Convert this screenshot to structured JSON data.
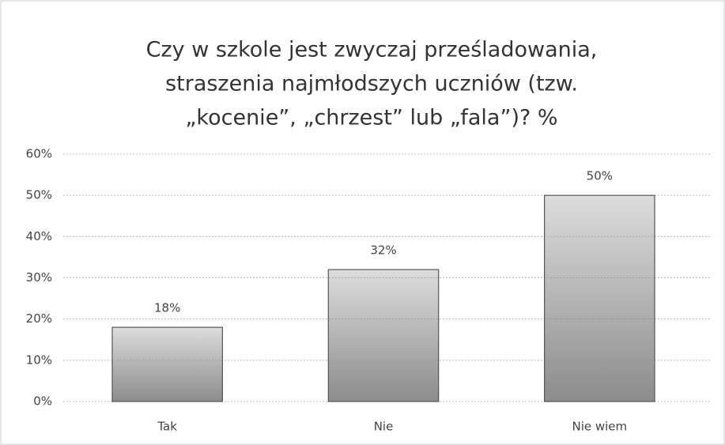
{
  "chart_data": {
    "type": "bar",
    "title": [
      "Czy w szkole jest zwyczaj prześladowania,",
      "straszenia najmłodszych uczniów (tzw.",
      "„kocenie”, „chrzest” lub „fala”)? %"
    ],
    "categories": [
      "Tak",
      "Nie",
      "Nie wiem"
    ],
    "values": [
      18,
      32,
      50
    ],
    "value_labels": [
      "18%",
      "32%",
      "50%"
    ],
    "color": "#8c8c8c",
    "ylim": [
      0,
      60
    ],
    "yticks": [
      {
        "value": 0,
        "label": "0%"
      },
      {
        "value": 10,
        "label": "10%"
      },
      {
        "value": 20,
        "label": "20%"
      },
      {
        "value": 30,
        "label": "30%"
      },
      {
        "value": 40,
        "label": "40%"
      },
      {
        "value": 50,
        "label": "50%"
      },
      {
        "value": 60,
        "label": "60%"
      }
    ],
    "grid": true
  }
}
